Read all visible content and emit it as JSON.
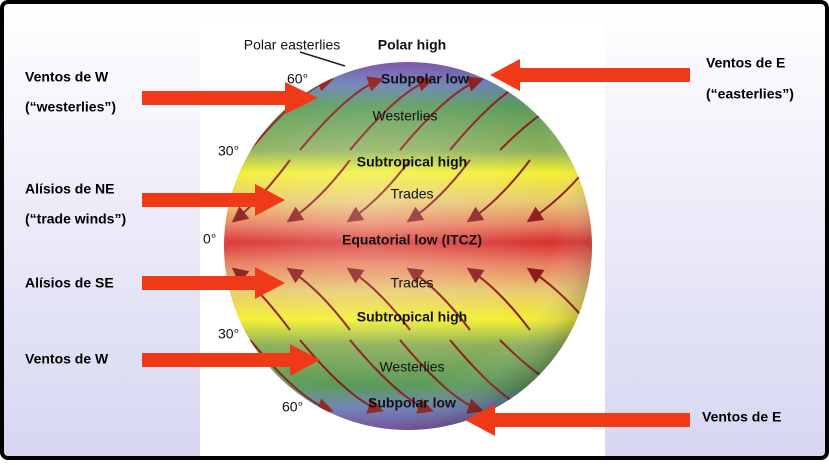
{
  "globe_labels": {
    "polar_easterlies": "Polar easterlies",
    "polar_high": "Polar high",
    "north_subpolar_low": "Subpolar low",
    "north_westerlies": "Westerlies",
    "north_subtropical_high": "Subtropical high",
    "north_trades": "Trades",
    "equatorial_low": "Equatorial low (ITCZ)",
    "south_trades": "Trades",
    "south_subtropical_high": "Subtropical high",
    "south_westerlies": "Westerlies",
    "south_subpolar_low": "Subpolar low"
  },
  "latitudes": [
    "60°",
    "30°",
    "0°",
    "30°",
    "60°"
  ],
  "side_labels": {
    "north_westerlies": "Ventos de W",
    "north_westerlies_en": "(“westerlies”)",
    "north_easterlies": "Ventos de E",
    "north_easterlies_en": "(“easterlies”)",
    "ne_trades": "Alísios de NE",
    "ne_trades_en": "(“trade winds”)",
    "se_trades": "Alísios de SE",
    "south_westerlies": "Ventos de W",
    "south_easterlies": "Ventos de E"
  }
}
